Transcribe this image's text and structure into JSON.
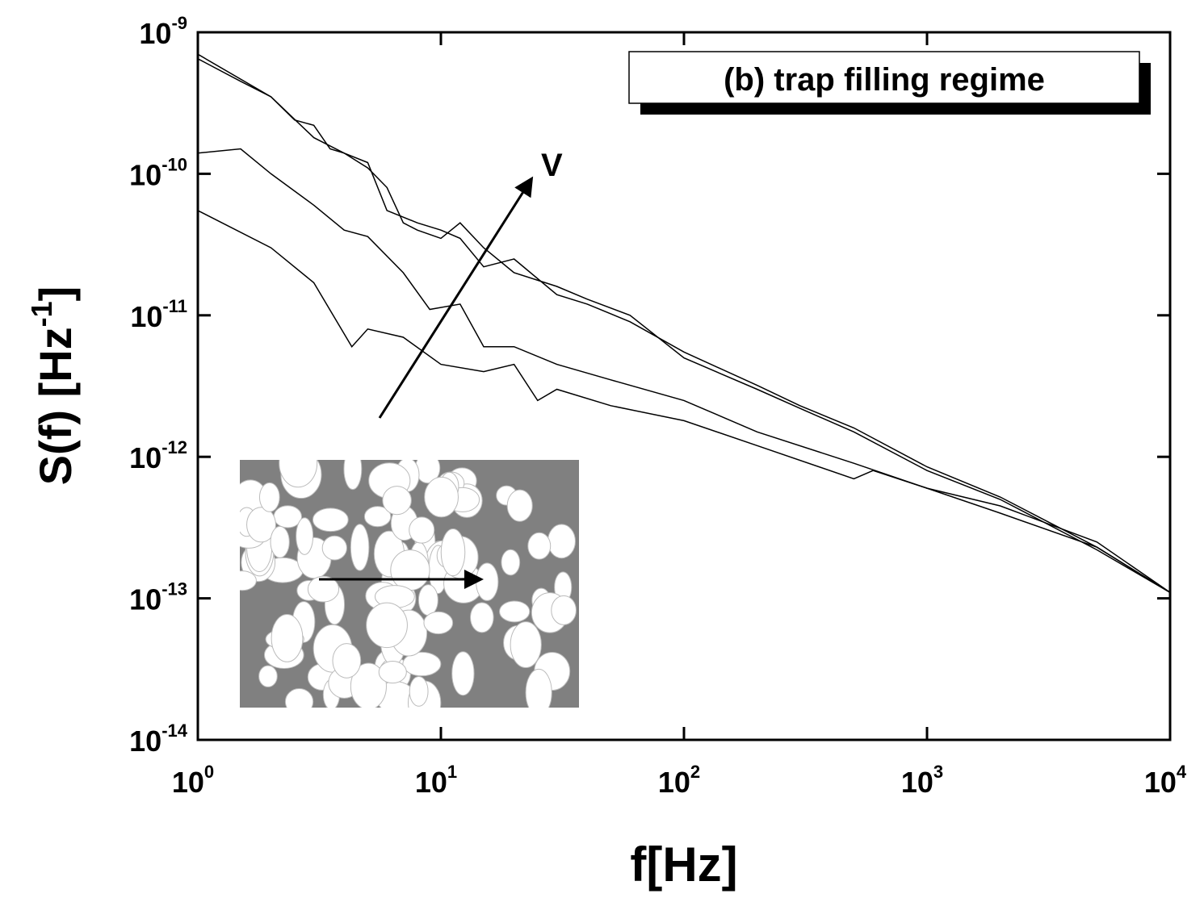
{
  "chart_data": {
    "type": "line",
    "xlabel": "f[Hz]",
    "ylabel": {
      "text": "S(f) [Hz",
      "superscript": "-1",
      "suffix": "]"
    },
    "legend_box": "(b) trap filling regime",
    "annotation": "V",
    "log_x": true,
    "log_y": true,
    "xlim": [
      1,
      10000
    ],
    "ylim": [
      1e-14,
      1e-09
    ],
    "xticks": [
      {
        "value": 1,
        "label": "10",
        "exponent": "0"
      },
      {
        "value": 10,
        "label": "10",
        "exponent": "1"
      },
      {
        "value": 100,
        "label": "10",
        "exponent": "2"
      },
      {
        "value": 1000,
        "label": "10",
        "exponent": "3"
      },
      {
        "value": 10000,
        "label": "10",
        "exponent": "4"
      }
    ],
    "yticks": [
      {
        "value": 1e-14,
        "label": "10",
        "exponent": "-14"
      },
      {
        "value": 1e-13,
        "label": "10",
        "exponent": "-13"
      },
      {
        "value": 1e-12,
        "label": "10",
        "exponent": "-12"
      },
      {
        "value": 1e-11,
        "label": "10",
        "exponent": "-11"
      },
      {
        "value": 1e-10,
        "label": "10",
        "exponent": "-10"
      },
      {
        "value": 1e-09,
        "label": "10",
        "exponent": "-9"
      }
    ],
    "series": [
      {
        "color": "#000000",
        "x": [
          1,
          1.5,
          2,
          2.5,
          3,
          3.5,
          4,
          5,
          6,
          7,
          8,
          10,
          12,
          15,
          20,
          30,
          40,
          60,
          100,
          200,
          300,
          500,
          1000,
          2000,
          5000,
          10000
        ],
        "values": [
          6.5e-10,
          4.5e-10,
          3.5e-10,
          2.4e-10,
          2.2e-10,
          1.5e-10,
          1.4e-10,
          1.1e-10,
          8e-11,
          4.5e-11,
          4e-11,
          3.5e-11,
          4.5e-11,
          3e-11,
          2e-11,
          1.6e-11,
          1.3e-11,
          1e-11,
          5e-12,
          3e-12,
          2.2e-12,
          1.5e-12,
          8e-13,
          5e-13,
          2.2e-13,
          1.1e-13
        ]
      },
      {
        "color": "#000000",
        "x": [
          1,
          2,
          3,
          4,
          5,
          6,
          8,
          10,
          12,
          15,
          20,
          30,
          40,
          60,
          100,
          200,
          300,
          500,
          1000,
          2000,
          5000,
          10000
        ],
        "values": [
          7e-10,
          3.5e-10,
          1.8e-10,
          1.4e-10,
          1.2e-10,
          5.5e-11,
          4.5e-11,
          4e-11,
          3.5e-11,
          2.2e-11,
          2.5e-11,
          1.4e-11,
          1.2e-11,
          9e-12,
          5.5e-12,
          3.2e-12,
          2.3e-12,
          1.6e-12,
          8.5e-13,
          5.2e-13,
          2.3e-13,
          1.1e-13
        ]
      },
      {
        "color": "#000000",
        "x": [
          1,
          1.5,
          2,
          3,
          4,
          5,
          7,
          9,
          12,
          15,
          20,
          30,
          50,
          100,
          200,
          500,
          1000,
          2000,
          5000,
          10000
        ],
        "values": [
          1.4e-10,
          1.5e-10,
          1e-10,
          6e-11,
          4e-11,
          3.6e-11,
          2e-11,
          1.1e-11,
          1.2e-11,
          6e-12,
          6e-12,
          4.5e-12,
          3.5e-12,
          2.5e-12,
          1.5e-12,
          9e-13,
          6e-13,
          4.5e-13,
          2.5e-13,
          1.1e-13
        ]
      },
      {
        "color": "#000000",
        "x": [
          1,
          2,
          3,
          4.3,
          5,
          7,
          10,
          15,
          20,
          25,
          30,
          50,
          100,
          200,
          500,
          600,
          1000,
          2000,
          5000,
          10000
        ],
        "values": [
          5.5e-11,
          3e-11,
          1.7e-11,
          6e-12,
          8e-12,
          7e-12,
          4.5e-12,
          4e-12,
          4.5e-12,
          2.5e-12,
          3e-12,
          2.3e-12,
          1.8e-12,
          1.2e-12,
          7e-13,
          8e-13,
          6e-13,
          4e-13,
          2.3e-13,
          1.1e-13
        ]
      }
    ]
  }
}
